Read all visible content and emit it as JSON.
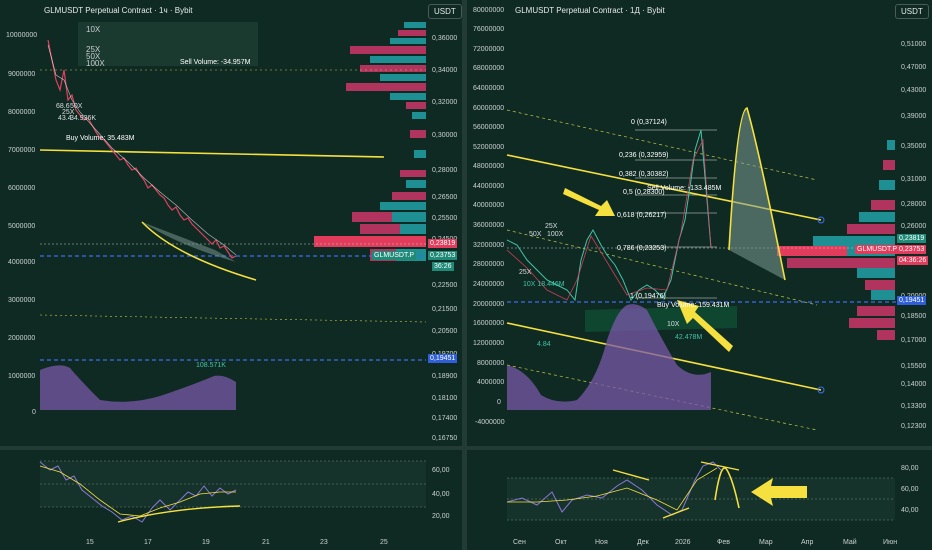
{
  "left_chart": {
    "title": "GLMUSDT Perpetual Contract · 1ч · Bybit",
    "currency": "USDT",
    "volume_axis": [
      "10000000",
      "9000000",
      "8000000",
      "7000000",
      "6000000",
      "5000000",
      "4000000",
      "3000000",
      "2000000",
      "1000000",
      "0"
    ],
    "price_axis": [
      "0,36000",
      "0,34000",
      "0,32000",
      "0,30000",
      "0,28000",
      "0,26500",
      "0,25500",
      "0,24500",
      "0,22500",
      "0,21500",
      "0,20500",
      "0,19700",
      "0,18900",
      "0,18100",
      "0,17400",
      "0,16750"
    ],
    "price_tag_red": "0,23819",
    "price_tag_symbol": "GLMUSDT.P",
    "price_tag_current": "0,23753",
    "price_tag_timer": "36:26",
    "price_tag_blue": "0,19451",
    "leverage_labels": [
      "10X",
      "25X",
      "50X",
      "100X"
    ],
    "sell_volume": "Sell Volume: -34.957M",
    "buy_volume": "Buy Volume: 35.483M",
    "small_labels": [
      "68.6",
      "50X",
      "25X",
      "43.4",
      "34.936K"
    ],
    "bottom_value": "108.571K",
    "time_axis": [
      "15",
      "17",
      "19",
      "21",
      "23",
      "25"
    ],
    "osc_axis": [
      "60,00",
      "40,00",
      "20,00"
    ]
  },
  "right_chart": {
    "title": "GLMUSDT Perpetual Contract · 1Д · Bybit",
    "currency": "USDT",
    "volume_axis": [
      "80000000",
      "76000000",
      "72000000",
      "68000000",
      "64000000",
      "60000000",
      "56000000",
      "52000000",
      "48000000",
      "44000000",
      "40000000",
      "36000000",
      "32000000",
      "28000000",
      "24000000",
      "20000000",
      "16000000",
      "12000000",
      "8000000",
      "4000000",
      "0",
      "-4000000"
    ],
    "price_axis": [
      "0,51000",
      "0,47000",
      "0,43000",
      "0,39000",
      "0,35000",
      "0,31000",
      "0,28000",
      "0,26000",
      "0,20000",
      "0,18500",
      "0,17000",
      "0,15500",
      "0,14000",
      "0,13300",
      "0,12300"
    ],
    "price_tag_red": "0,23819",
    "price_tag_symbol": "GLMUSDT.P",
    "price_tag_current": "0,23753",
    "price_tag_timer": "04:36:26",
    "price_tag_blue": "0,19451",
    "fib_levels": [
      "0 (0,37124)",
      "0,236 (0,32959)",
      "0,382 (0,30382)",
      "0,5 (0,28300)",
      "0,618 (0,26217)",
      "0,786 (0,23253)",
      "1 (0,19476)"
    ],
    "sell_volume": "Sell Volume: -133.485M",
    "buy_volume": "Buy Volume: 159.431M",
    "small_labels": [
      "25X",
      "50X",
      "100X",
      "10X",
      "25X",
      "10X 18.446M",
      "42.478M",
      "4.84"
    ],
    "time_axis": [
      "Сен",
      "Окт",
      "Ноя",
      "Дек",
      "2026",
      "Фев",
      "Мар",
      "Апр",
      "Май",
      "Июн"
    ],
    "osc_axis": [
      "80,00",
      "60,00",
      "40,00"
    ]
  },
  "colors": {
    "background": "#0f2a22",
    "accent_yellow": "#f5e040",
    "tag_red": "#e23c5c",
    "tag_green": "#1f8a78",
    "tag_blue": "#2f5fd8",
    "heatmap_teal": "#1e8f93",
    "heatmap_pink": "#b0345e",
    "volume_purple": "#7a58a8"
  }
}
